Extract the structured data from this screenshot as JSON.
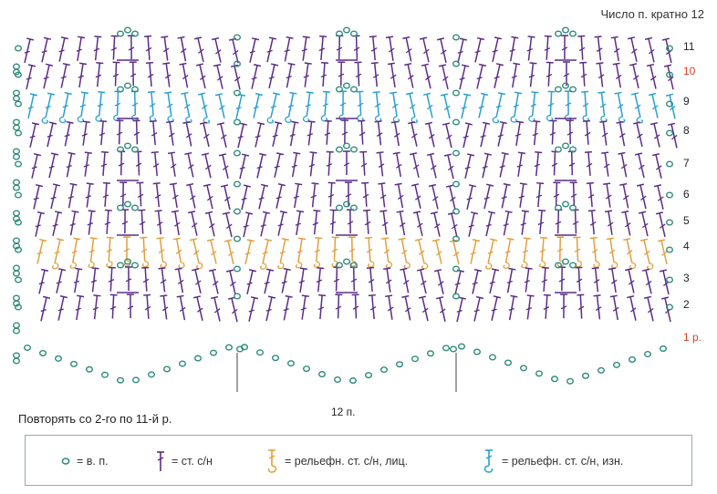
{
  "header": {
    "title": "Число п. кратно 12"
  },
  "rows": [
    {
      "label": "11",
      "highlight": false
    },
    {
      "label": "10",
      "highlight": true
    },
    {
      "label": "9",
      "highlight": false
    },
    {
      "label": "8",
      "highlight": false
    },
    {
      "label": "7",
      "highlight": false
    },
    {
      "label": "6",
      "highlight": false
    },
    {
      "label": "5",
      "highlight": false
    },
    {
      "label": "4",
      "highlight": false
    },
    {
      "label": "3",
      "highlight": false
    },
    {
      "label": "2",
      "highlight": false
    },
    {
      "label": "1 р.",
      "highlight": true
    }
  ],
  "repeat": {
    "stitch_label": "12 п.",
    "note": "Повторять со 2-го по 11-й р."
  },
  "legend": [
    {
      "icon": "chain-stitch-icon",
      "text": "= в. п."
    },
    {
      "icon": "double-crochet-icon",
      "text": "= ст. с/н"
    },
    {
      "icon": "front-post-dc-icon",
      "text": "= рельефн. ст. с/н, лиц."
    },
    {
      "icon": "back-post-dc-icon",
      "text": "= рельефн. ст. с/н, изн."
    }
  ],
  "colors": {
    "stitch": "#5b2d86",
    "chain": "#2e8b7a",
    "front_post": "#e0a040",
    "back_post": "#2a9fd0",
    "row_highlight": "#d44324"
  }
}
